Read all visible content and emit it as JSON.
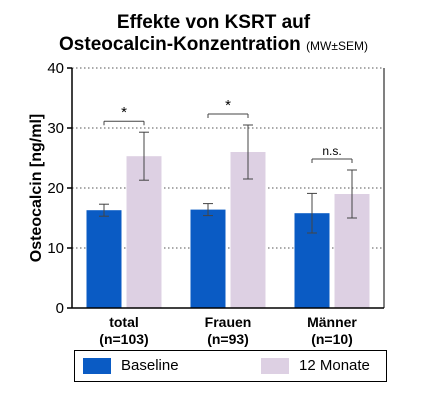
{
  "title_line1": "Effekte von KSRT auf",
  "title_line2": "Osteocalcin-Konzentration",
  "title_suffix": "(MW±SEM)",
  "colors": {
    "baseline": "#0a5bc4",
    "month12": "#ddd0e3",
    "grid": "#555555"
  },
  "chart_data": {
    "type": "bar",
    "title": "Effekte von KSRT auf Osteocalcin-Konzentration (MW±SEM)",
    "ylabel": "Osteocalcin [ng/ml]",
    "xlabel": "",
    "ylim": [
      0,
      40
    ],
    "yticks": [
      0,
      10,
      20,
      30,
      40
    ],
    "grid": "dotted horizontal at 10, 20, 30",
    "legend_position": "bottom",
    "categories": [
      {
        "name": "total",
        "n": "(n=103)"
      },
      {
        "name": "Frauen",
        "n": "(n=93)"
      },
      {
        "name": "Männer",
        "n": "(n=10)"
      }
    ],
    "series": [
      {
        "name": "Baseline",
        "values": [
          16.3,
          16.4,
          15.8
        ],
        "errors": [
          1.0,
          1.0,
          3.3
        ]
      },
      {
        "name": "12 Monate",
        "values": [
          25.3,
          26.0,
          19.0
        ],
        "errors": [
          4.0,
          4.5,
          4.0
        ]
      }
    ],
    "annotations": [
      "*",
      "*",
      "n.s."
    ]
  }
}
